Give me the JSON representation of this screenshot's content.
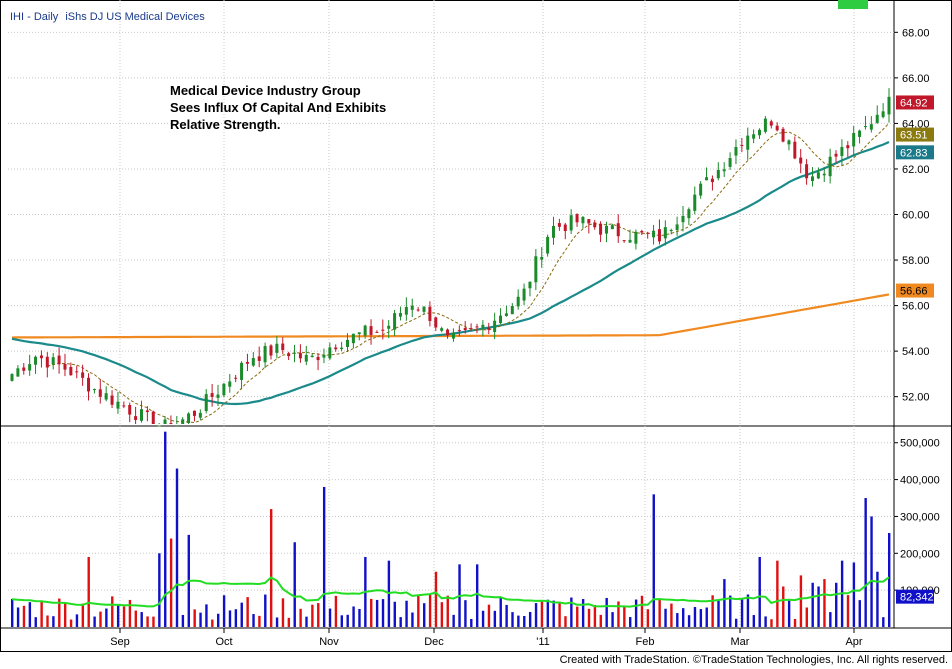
{
  "header": {
    "symbol": "IHI - Daily",
    "name": "iShs DJ US Medical Devices"
  },
  "annotation": {
    "lines": [
      "Medical Device Industry Group",
      "Sees Influx Of Capital And Exhibits",
      "Relative Strength."
    ]
  },
  "footer": {
    "credit": "Created with TradeStation. ©TradeStation Technologies, Inc. All rights reserved."
  },
  "colors": {
    "up": "#1a8a2a",
    "down": "#c0182a",
    "ma_long": "#f08a20",
    "ma_mid": "#1a8a8a",
    "ma_short": "#8a6a10",
    "vol_up": "#1010c8",
    "vol_down": "#e01010",
    "vol_ma": "#22dd22",
    "last_price_tag": "#c0182a",
    "ma_short_tag": "#8a7a10",
    "ma_mid_tag": "#1a7a8a",
    "ma_long_tag": "#f08a20",
    "vol_tag": "#1010c8"
  },
  "chart_data": [
    {
      "type": "candlestick",
      "panel": "price",
      "ylim": [
        50.8,
        69.2
      ],
      "y_ticks": [
        "52.00",
        "54.00",
        "56.00",
        "58.00",
        "60.00",
        "62.00",
        "64.00",
        "66.00",
        "68.00"
      ],
      "x_labels": [
        "Sep",
        "Oct",
        "Nov",
        "Dec",
        "'11",
        "Feb",
        "Mar",
        "Apr"
      ],
      "grid": true,
      "last_values": {
        "close": "64.92",
        "ma_short": "63.51",
        "ma_mid": "62.83",
        "ma_long": "56.66"
      }
    },
    {
      "type": "bar",
      "panel": "volume",
      "ylim": [
        0,
        540000
      ],
      "y_ticks": [
        "100,000",
        "200,000",
        "300,000",
        "400,000",
        "500,000"
      ],
      "last_value": "82,342"
    }
  ]
}
